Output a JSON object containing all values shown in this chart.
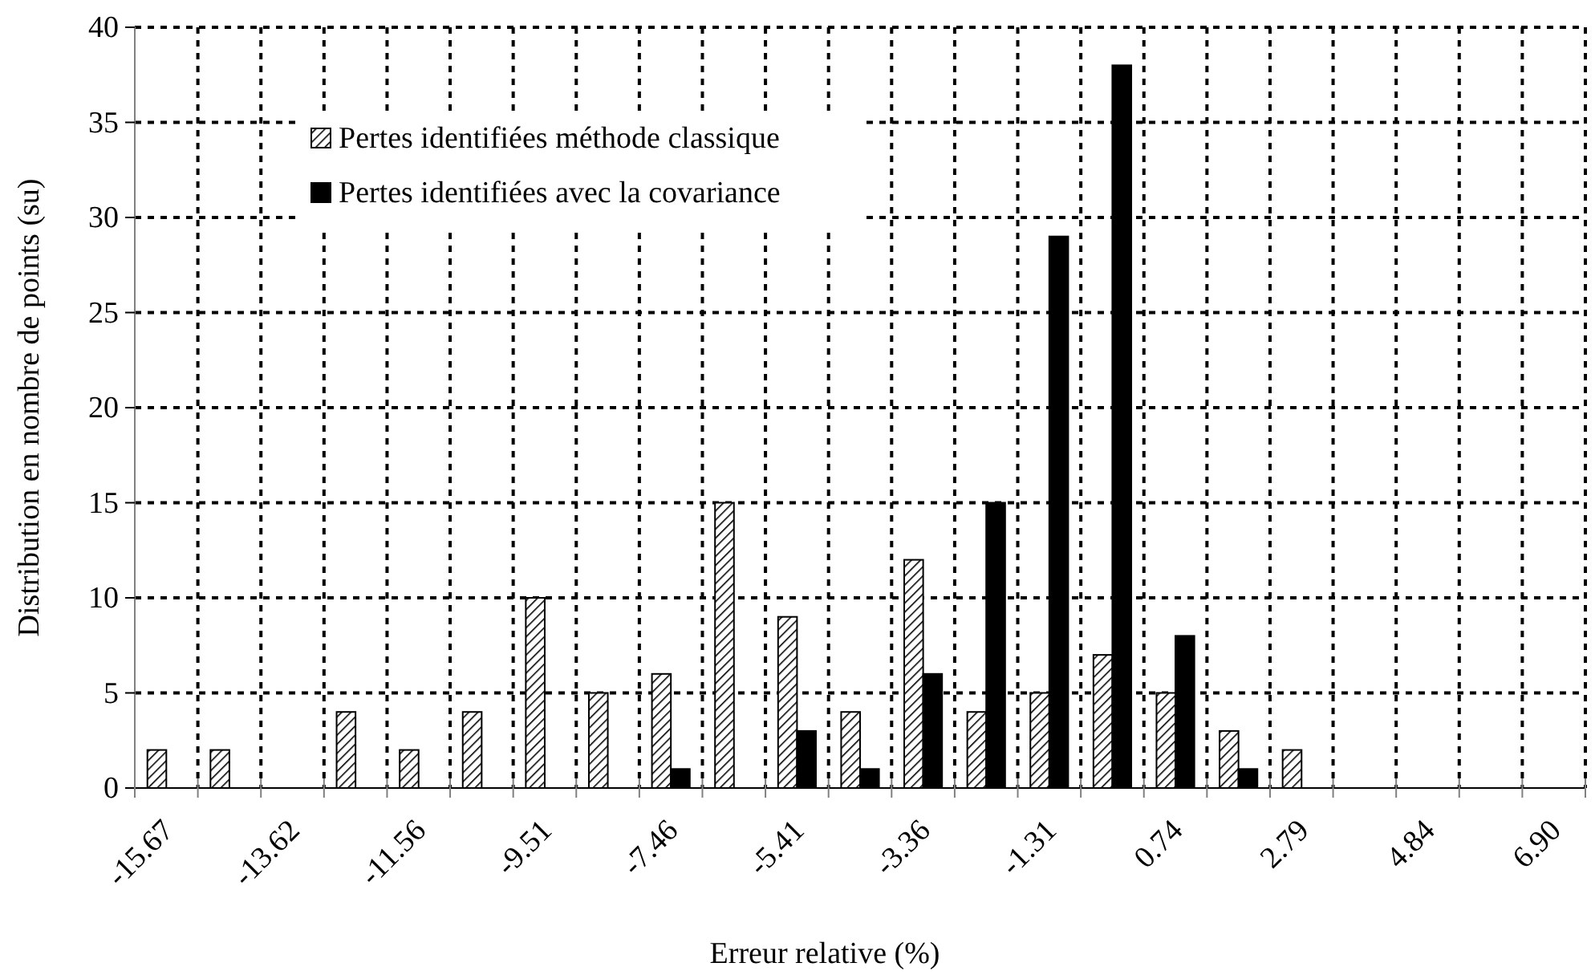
{
  "chart_data": {
    "type": "bar",
    "xlabel": "Erreur relative (%)",
    "ylabel": "Distribution en nombre de points (su)",
    "categories": [
      "-15.67",
      null,
      "-13.62",
      null,
      "-11.56",
      null,
      "-9.51",
      null,
      "-7.46",
      null,
      "-5.41",
      null,
      "-3.36",
      null,
      "-1.31",
      null,
      "0.74",
      null,
      "2.79",
      null,
      "4.84",
      null,
      "6.90"
    ],
    "series": [
      {
        "name": "Pertes identifiées méthode classique",
        "color": "#000000",
        "values": [
          2,
          2,
          0,
          4,
          2,
          4,
          10,
          5,
          6,
          15,
          9,
          4,
          12,
          4,
          5,
          7,
          5,
          3,
          2,
          0,
          0,
          0,
          0
        ]
      },
      {
        "name": "Pertes identifiées avec la covariance",
        "color": "#000000",
        "values": [
          0,
          0,
          0,
          0,
          0,
          0,
          0,
          0,
          1,
          0,
          3,
          1,
          6,
          15,
          29,
          38,
          8,
          1,
          0,
          0,
          0,
          0,
          0
        ]
      }
    ],
    "ylim": [
      0,
      40
    ],
    "yticks": [
      0,
      5,
      10,
      15,
      20,
      25,
      30,
      35,
      40
    ],
    "grid": true,
    "legend": "top left"
  }
}
